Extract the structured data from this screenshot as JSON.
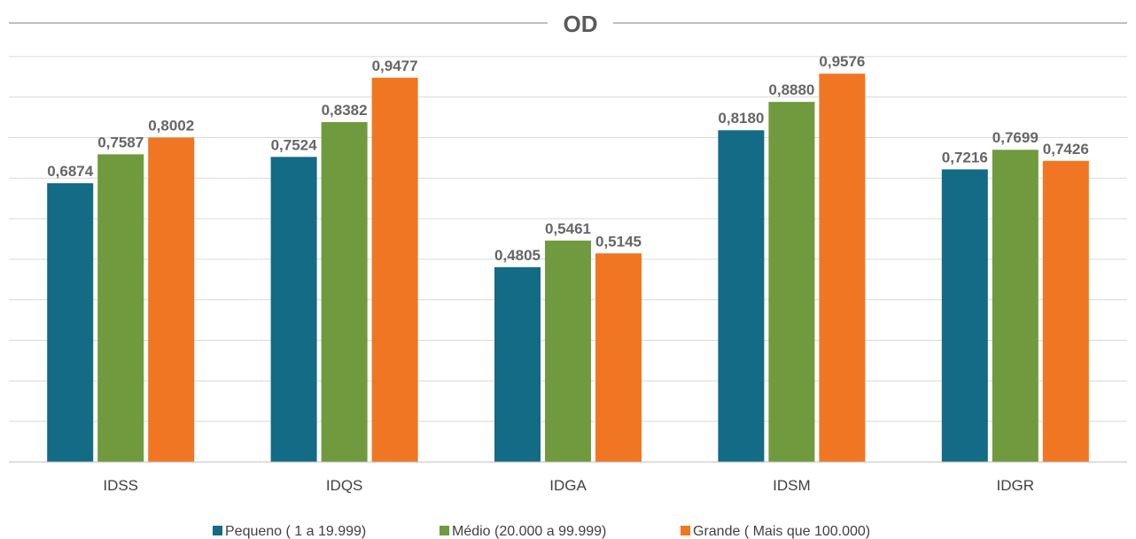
{
  "chart_data": {
    "type": "bar",
    "title": "OD",
    "categories": [
      "IDSS",
      "IDQS",
      "IDGA",
      "IDSM",
      "IDGR"
    ],
    "series": [
      {
        "name": "Pequeno ( 1 a 19.999)",
        "color": "#136b85",
        "values": [
          0.6874,
          0.7524,
          0.4805,
          0.818,
          0.7216
        ],
        "labels": [
          "0,6874",
          "0,7524",
          "0,4805",
          "0,8180",
          "0,7216"
        ]
      },
      {
        "name": "Médio (20.000 a 99.999)",
        "color": "#6f9a3d",
        "values": [
          0.7587,
          0.8382,
          0.5461,
          0.888,
          0.7699
        ],
        "labels": [
          "0,7587",
          "0,8382",
          "0,5461",
          "0,8880",
          "0,7699"
        ]
      },
      {
        "name": "Grande ( Mais que 100.000)",
        "color": "#f07624",
        "values": [
          0.8002,
          0.9477,
          0.5145,
          0.9576,
          0.7426
        ],
        "labels": [
          "0,8002",
          "0,9477",
          "0,5145",
          "0,9576",
          "0,7426"
        ]
      }
    ],
    "ylim": [
      0,
      1.1
    ],
    "grid": true,
    "legend": "bottom"
  }
}
